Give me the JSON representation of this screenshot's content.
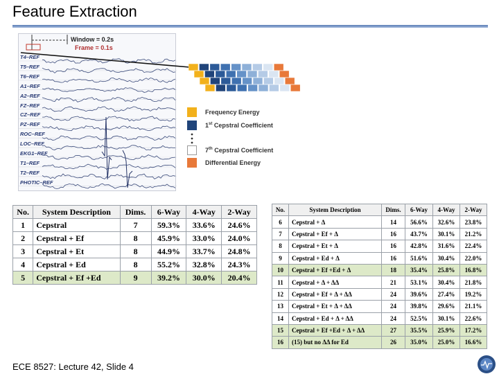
{
  "page": {
    "title": "Feature Extraction",
    "footer": "ECE 8527: Lecture 42, Slide 4"
  },
  "eeg": {
    "window_label": "Window = 0.2s",
    "frame_label": "Frame = 0.1s",
    "channels": [
      "T4–REF",
      "T5–REF",
      "T6–REF",
      "A1–REF",
      "A2–REF",
      "FZ–REF",
      "CZ–REF",
      "PZ–REF",
      "ROC–REF",
      "LOC–REF",
      "EKG1–REF",
      "T1–REF",
      "T2–REF",
      "PHOTIC–REF"
    ]
  },
  "legend": {
    "items": [
      {
        "label": "Frequency Energy",
        "color": "#f2b11c"
      },
      {
        "label": "1st Cepstral Coefficient",
        "color": "#20447a"
      },
      {
        "label": "7th Cepstral Coefficient",
        "color": "#ffffff"
      },
      {
        "label": "Differential Energy",
        "color": "#e8793a"
      }
    ]
  },
  "table1": {
    "headers": [
      "No.",
      "System Description",
      "Dims.",
      "6-Way",
      "4-Way",
      "2-Way"
    ],
    "rows": [
      {
        "no": "1",
        "desc": "Cepstral",
        "dims": "7",
        "w6": "59.3%",
        "w4": "33.6%",
        "w2": "24.6%",
        "hl": false
      },
      {
        "no": "2",
        "desc": "Cepstral + Ef",
        "dims": "8",
        "w6": "45.9%",
        "w4": "33.0%",
        "w2": "24.0%",
        "hl": false
      },
      {
        "no": "3",
        "desc": "Cepstral + Et",
        "dims": "8",
        "w6": "44.9%",
        "w4": "33.7%",
        "w2": "24.8%",
        "hl": false
      },
      {
        "no": "4",
        "desc": "Cepstral + Ed",
        "dims": "8",
        "w6": "55.2%",
        "w4": "32.8%",
        "w2": "24.3%",
        "hl": false
      },
      {
        "no": "5",
        "desc": "Cepstral + Ef +Ed",
        "dims": "9",
        "w6": "39.2%",
        "w4": "30.0%",
        "w2": "20.4%",
        "hl": true
      }
    ]
  },
  "table2": {
    "headers": [
      "No.",
      "System Description",
      "Dims.",
      "6-Way",
      "4-Way",
      "2-Way"
    ],
    "rows": [
      {
        "no": "6",
        "desc": "Cepstral + Δ",
        "dims": "14",
        "w6": "56.6%",
        "w4": "32.6%",
        "w2": "23.8%",
        "hl": false
      },
      {
        "no": "7",
        "desc": "Cepstral + Ef + Δ",
        "dims": "16",
        "w6": "43.7%",
        "w4": "30.1%",
        "w2": "21.2%",
        "hl": false
      },
      {
        "no": "8",
        "desc": "Cepstral + Et + Δ",
        "dims": "16",
        "w6": "42.8%",
        "w4": "31.6%",
        "w2": "22.4%",
        "hl": false
      },
      {
        "no": "9",
        "desc": "Cepstral + Ed + Δ",
        "dims": "16",
        "w6": "51.6%",
        "w4": "30.4%",
        "w2": "22.0%",
        "hl": false
      },
      {
        "no": "10",
        "desc": "Cepstral + Ef +Ed + Δ",
        "dims": "18",
        "w6": "35.4%",
        "w4": "25.8%",
        "w2": "16.8%",
        "hl": true
      },
      {
        "no": "11",
        "desc": "Cepstral + Δ + ΔΔ",
        "dims": "21",
        "w6": "53.1%",
        "w4": "30.4%",
        "w2": "21.8%",
        "hl": false
      },
      {
        "no": "12",
        "desc": "Cepstral + Ef + Δ + ΔΔ",
        "dims": "24",
        "w6": "39.6%",
        "w4": "27.4%",
        "w2": "19.2%",
        "hl": false
      },
      {
        "no": "13",
        "desc": "Cepstral + Et + Δ + ΔΔ",
        "dims": "24",
        "w6": "39.8%",
        "w4": "29.6%",
        "w2": "21.1%",
        "hl": false
      },
      {
        "no": "14",
        "desc": "Cepstral + Ed + Δ + ΔΔ",
        "dims": "24",
        "w6": "52.5%",
        "w4": "30.1%",
        "w2": "22.6%",
        "hl": false
      },
      {
        "no": "15",
        "desc": "Cepstral + Ef +Ed + Δ + ΔΔ",
        "dims": "27",
        "w6": "35.5%",
        "w4": "25.9%",
        "w2": "17.2%",
        "hl": true
      },
      {
        "no": "16",
        "desc": "(15) but no ΔΔ for Ed",
        "dims": "26",
        "w6": "35.0%",
        "w4": "25.0%",
        "w2": "16.6%",
        "hl": true
      }
    ]
  }
}
